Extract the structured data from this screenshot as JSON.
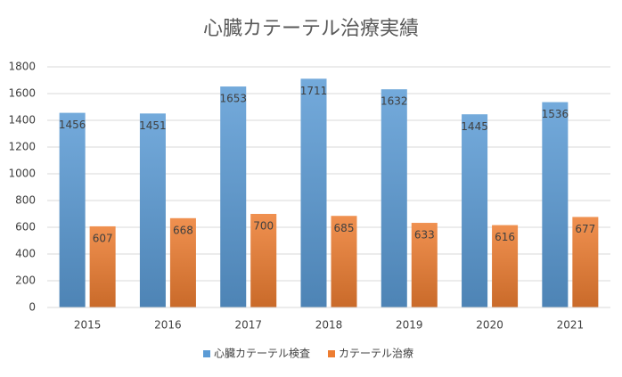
{
  "chart_data": {
    "type": "bar",
    "title": "心臓カテーテル治療実績",
    "categories": [
      "2015",
      "2016",
      "2017",
      "2018",
      "2019",
      "2020",
      "2021"
    ],
    "series": [
      {
        "name": "心臓カテーテル検査",
        "color": "#5b9bd5",
        "values": [
          1456,
          1451,
          1653,
          1711,
          1632,
          1445,
          1536
        ]
      },
      {
        "name": "カテーテル治療",
        "color": "#ed7d31",
        "values": [
          607,
          668,
          700,
          685,
          633,
          616,
          677
        ]
      }
    ],
    "ylim": [
      0,
      1800
    ],
    "yticks": [
      0,
      200,
      400,
      600,
      800,
      1000,
      1200,
      1400,
      1600,
      1800
    ],
    "grid": true,
    "legend": "bottom"
  }
}
